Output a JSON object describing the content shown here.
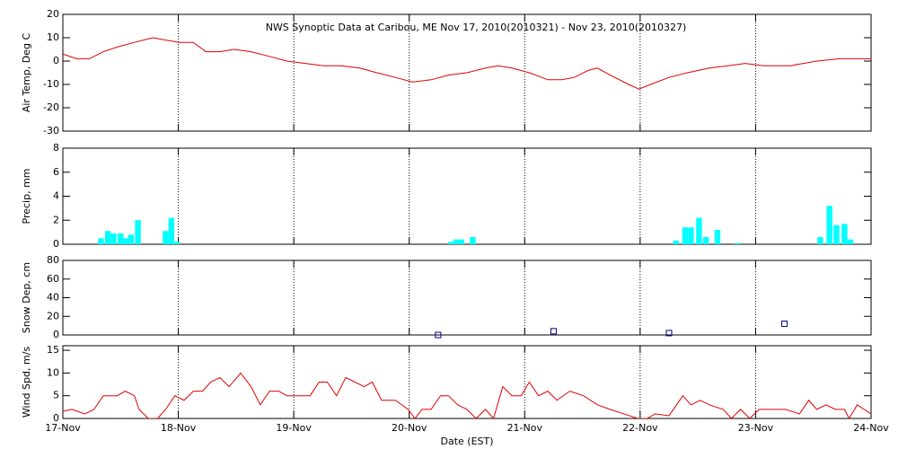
{
  "chart_data": [
    {
      "type": "line",
      "title": "NWS Synoptic Data at Caribou, ME    Nov 17, 2010(2010321) - Nov 23, 2010(2010327)",
      "y_label": "Air Temp, Deg C",
      "xlim": [
        0,
        7
      ],
      "ylim": [
        -30,
        20
      ],
      "yticks": [
        -30,
        -20,
        -10,
        0,
        10,
        20
      ],
      "grid": true,
      "series": [
        {
          "color": "#e00000",
          "x": [
            0,
            0.12,
            0.23,
            0.35,
            0.47,
            0.62,
            0.78,
            0.89,
            1.01,
            1.13,
            1.24,
            1.36,
            1.48,
            1.63,
            1.79,
            1.94,
            2.1,
            2.26,
            2.41,
            2.57,
            2.72,
            2.88,
            3.03,
            3.19,
            3.34,
            3.5,
            3.66,
            3.77,
            3.89,
            4.04,
            4.2,
            4.32,
            4.43,
            4.55,
            4.63,
            4.74,
            4.9,
            4.99,
            5.09,
            5.25,
            5.41,
            5.6,
            5.76,
            5.91,
            6.07,
            6.3,
            6.53,
            6.73,
            7
          ],
          "values": [
            3,
            1,
            1,
            4,
            6,
            8,
            10,
            9,
            8,
            8,
            4,
            4,
            5,
            4,
            2,
            0,
            -1,
            -2,
            -2,
            -3,
            -5,
            -7,
            -9,
            -8,
            -6,
            -5,
            -3,
            -2,
            -3,
            -5,
            -8,
            -8,
            -7,
            -4,
            -3,
            -6,
            -10,
            -12,
            -10,
            -7,
            -5,
            -3,
            -2,
            -1,
            -2,
            -2,
            0,
            1,
            1
          ]
        }
      ]
    },
    {
      "type": "bar",
      "y_label": "Precip, mm",
      "xlim": [
        0,
        7
      ],
      "ylim": [
        0,
        8
      ],
      "yticks": [
        0,
        2,
        4,
        6,
        8
      ],
      "grid": true,
      "series": [
        {
          "color": "#00ffff",
          "x": [
            0.33,
            0.39,
            0.44,
            0.5,
            0.54,
            0.59,
            0.65,
            0.89,
            0.94,
            0.99,
            3.36,
            3.41,
            3.45,
            3.55,
            5.31,
            5.39,
            5.44,
            5.51,
            5.57,
            5.67,
            5.84,
            6.56,
            6.64,
            6.7,
            6.77,
            6.82
          ],
          "values": [
            0.5,
            1.1,
            0.9,
            0.9,
            0.5,
            0.8,
            2.0,
            1.1,
            2.2,
            0.2,
            0.2,
            0.4,
            0.4,
            0.6,
            0.3,
            1.4,
            1.4,
            2.2,
            0.6,
            1.2,
            0.1,
            0.6,
            3.2,
            1.6,
            1.7,
            0.4
          ]
        }
      ]
    },
    {
      "type": "scatter",
      "y_label": "Snow Dep, cm",
      "xlim": [
        0,
        7
      ],
      "ylim": [
        0,
        80
      ],
      "yticks": [
        0,
        20,
        40,
        60,
        80
      ],
      "grid": true,
      "series": [
        {
          "color": "#00008b",
          "x": [
            3.25,
            4.25,
            5.25,
            6.25
          ],
          "values": [
            0,
            4,
            2,
            12
          ]
        }
      ]
    },
    {
      "type": "line",
      "y_label": "Wind Spd, m/s",
      "x_label": "Date (EST)",
      "xlim": [
        0,
        7
      ],
      "ylim": [
        0,
        16
      ],
      "yticks": [
        0,
        5,
        10,
        15
      ],
      "grid": true,
      "xticks": [
        {
          "value": 0,
          "label": "17-Nov"
        },
        {
          "value": 1,
          "label": "18-Nov"
        },
        {
          "value": 2,
          "label": "19-Nov"
        },
        {
          "value": 3,
          "label": "20-Nov"
        },
        {
          "value": 4,
          "label": "21-Nov"
        },
        {
          "value": 5,
          "label": "22-Nov"
        },
        {
          "value": 6,
          "label": "23-Nov"
        },
        {
          "value": 7,
          "label": "24-Nov"
        }
      ],
      "series": [
        {
          "color": "#e00000",
          "x": [
            0,
            0.08,
            0.19,
            0.27,
            0.35,
            0.47,
            0.54,
            0.62,
            0.66,
            0.74,
            0.82,
            0.89,
            0.97,
            1.05,
            1.13,
            1.21,
            1.28,
            1.36,
            1.44,
            1.54,
            1.63,
            1.71,
            1.79,
            1.87,
            1.94,
            2.02,
            2.14,
            2.22,
            2.29,
            2.37,
            2.45,
            2.53,
            2.61,
            2.68,
            2.76,
            2.88,
            2.99,
            3.05,
            3.11,
            3.19,
            3.27,
            3.34,
            3.42,
            3.5,
            3.58,
            3.66,
            3.73,
            3.81,
            3.89,
            3.97,
            4.04,
            4.12,
            4.2,
            4.28,
            4.39,
            4.51,
            4.63,
            4.74,
            4.86,
            4.98,
            5.06,
            5.13,
            5.25,
            5.37,
            5.44,
            5.52,
            5.6,
            5.72,
            5.79,
            5.87,
            5.95,
            6.03,
            6.14,
            6.26,
            6.38,
            6.46,
            6.53,
            6.61,
            6.69,
            6.77,
            6.81,
            6.88,
            7
          ],
          "values": [
            1.6,
            2,
            1,
            2,
            5,
            5,
            6,
            5,
            2,
            0,
            0,
            2,
            5,
            4,
            6,
            6,
            8,
            9,
            7,
            10,
            7,
            3,
            6,
            6,
            5,
            5,
            5,
            8,
            8,
            5,
            9,
            8,
            7,
            8,
            4,
            4,
            2,
            0,
            2,
            2,
            5,
            5,
            3,
            2,
            0,
            2,
            0,
            7,
            5,
            5,
            8,
            5,
            6,
            4,
            6,
            5,
            3,
            2,
            1,
            0,
            0,
            1,
            0.6,
            5,
            3,
            4,
            3,
            2,
            0,
            2,
            0,
            2,
            2,
            2,
            1,
            4,
            2,
            3,
            2,
            2,
            0,
            3,
            1
          ]
        }
      ]
    }
  ]
}
